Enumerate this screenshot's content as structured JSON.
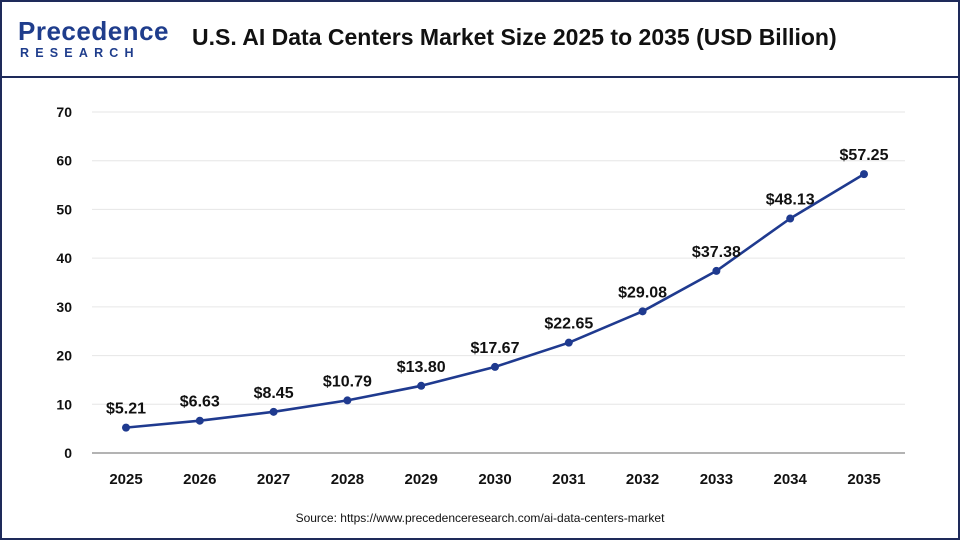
{
  "logo": {
    "main": "Precedence",
    "sub": "RESEARCH"
  },
  "title": "U.S. AI Data Centers Market Size 2025 to 2035 (USD Billion)",
  "source": "Source: https://www.precedenceresearch.com/ai-data-centers-market",
  "colors": {
    "line": "#1f3a8f",
    "frame": "#1e2a5a",
    "grid": "#e6e6e6"
  },
  "chart_data": {
    "type": "line",
    "title": "U.S. AI Data Centers Market Size 2025 to 2035 (USD Billion)",
    "xlabel": "",
    "ylabel": "",
    "ylim": [
      0,
      70
    ],
    "yticks": [
      "0",
      "10",
      "20",
      "30",
      "40",
      "50",
      "60",
      "70"
    ],
    "grid": true,
    "categories": [
      "2025",
      "2026",
      "2027",
      "2028",
      "2029",
      "2030",
      "2031",
      "2032",
      "2033",
      "2034",
      "2035"
    ],
    "values": [
      5.21,
      6.63,
      8.45,
      10.79,
      13.8,
      17.67,
      22.65,
      29.08,
      37.38,
      48.13,
      57.25
    ],
    "data_labels": [
      "$5.21",
      "$6.63",
      "$8.45",
      "$10.79",
      "$13.80",
      "$17.67",
      "$22.65",
      "$29.08",
      "$37.38",
      "$48.13",
      "$57.25"
    ]
  }
}
